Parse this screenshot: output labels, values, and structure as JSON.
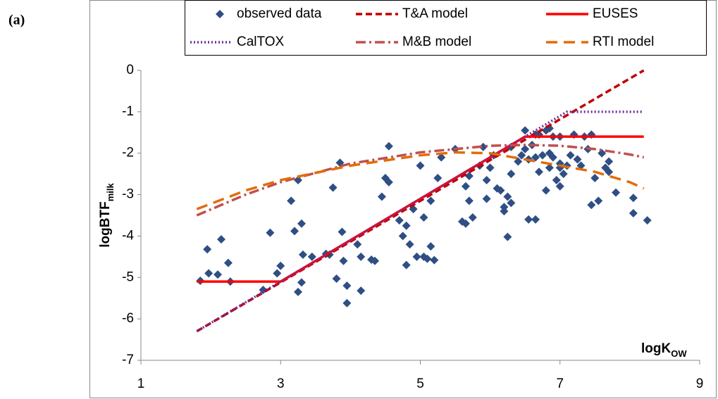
{
  "panel_label": "(a)",
  "chart_data": {
    "type": "scatter",
    "xlabel": {
      "text": "logK",
      "sub": "OW"
    },
    "ylabel": {
      "text": "logBTF",
      "sub": "milk"
    },
    "xlim": [
      1,
      9
    ],
    "ylim": [
      -7,
      0
    ],
    "xticks": [
      1,
      3,
      5,
      7,
      9
    ],
    "yticks": [
      -7,
      -6,
      -5,
      -4,
      -3,
      -2,
      -1,
      0
    ],
    "grid": false,
    "series": [
      {
        "name": "observed data",
        "color": "#2f4f84",
        "style": "markers",
        "x": [
          1.85,
          1.95,
          1.97,
          2.1,
          2.15,
          2.25,
          2.28,
          2.75,
          2.85,
          2.95,
          3.0,
          3.15,
          3.2,
          3.25,
          3.25,
          3.3,
          3.32,
          3.3,
          3.45,
          3.65,
          3.7,
          3.75,
          3.8,
          3.85,
          3.88,
          3.9,
          3.95,
          3.95,
          4.1,
          4.15,
          4.15,
          4.3,
          4.35,
          4.45,
          4.5,
          4.55,
          4.55,
          4.7,
          4.75,
          4.8,
          4.85,
          4.8,
          4.9,
          4.95,
          5.0,
          5.05,
          5.05,
          5.1,
          5.15,
          5.15,
          5.2,
          5.25,
          5.3,
          5.5,
          5.6,
          5.65,
          5.65,
          5.7,
          5.7,
          5.75,
          5.85,
          5.9,
          5.95,
          5.95,
          6.0,
          6.05,
          6.1,
          6.15,
          6.2,
          6.2,
          6.25,
          6.25,
          6.3,
          6.3,
          6.3,
          6.4,
          6.45,
          6.5,
          6.5,
          6.55,
          6.55,
          6.6,
          6.65,
          6.65,
          6.7,
          6.7,
          6.75,
          6.8,
          6.8,
          6.85,
          6.85,
          6.9,
          6.95,
          7.0,
          7.0,
          7.0,
          7.05,
          7.1,
          7.15,
          7.2,
          7.25,
          7.3,
          7.35,
          7.4,
          7.45,
          7.5,
          7.45,
          7.55,
          7.6,
          7.65,
          7.7,
          7.7,
          7.8,
          8.05,
          8.05,
          8.25,
          6.85,
          6.9,
          6.65,
          7.0
        ],
        "values": [
          -5.08,
          -4.32,
          -4.9,
          -4.93,
          -4.08,
          -4.65,
          -5.1,
          -5.3,
          -3.92,
          -4.9,
          -4.72,
          -3.15,
          -3.88,
          -2.65,
          -5.35,
          -3.7,
          -4.45,
          -5.12,
          -4.5,
          -4.43,
          -4.45,
          -2.83,
          -5.03,
          -2.23,
          -3.9,
          -4.6,
          -5.2,
          -5.62,
          -4.2,
          -4.5,
          -5.32,
          -4.57,
          -4.6,
          -3.05,
          -2.6,
          -2.7,
          -1.83,
          -3.62,
          -4.0,
          -3.75,
          -4.2,
          -4.7,
          -3.35,
          -4.5,
          -2.3,
          -4.5,
          -3.55,
          -4.55,
          -4.25,
          -3.15,
          -4.58,
          -2.6,
          -2.1,
          -1.9,
          -3.65,
          -3.7,
          -2.8,
          -2.55,
          -3.15,
          -3.55,
          -2.3,
          -1.85,
          -2.65,
          -3.1,
          -2.35,
          -2.05,
          -2.85,
          -2.9,
          -3.4,
          -3.3,
          -3.05,
          -4.02,
          -3.2,
          -2.5,
          -1.85,
          -2.2,
          -2.05,
          -1.9,
          -1.45,
          -2.15,
          -3.6,
          -1.8,
          -2.1,
          -3.6,
          -1.55,
          -2.45,
          -2.05,
          -1.45,
          -2.9,
          -2.0,
          -2.35,
          -2.1,
          -2.65,
          -2.35,
          -1.6,
          -2.8,
          -2.5,
          -2.3,
          -2.05,
          -1.55,
          -2.15,
          -2.3,
          -1.6,
          -1.9,
          -1.55,
          -2.6,
          -3.25,
          -3.15,
          -2.0,
          -2.35,
          -2.2,
          -2.45,
          -2.95,
          -3.08,
          -3.45,
          -3.62,
          -1.4,
          -1.6,
          -1.55,
          -2.25
        ]
      },
      {
        "name": "T&A model",
        "color": "#c00000",
        "style": "dashed",
        "x": [
          1.8,
          8.2
        ],
        "values": [
          -6.3,
          0
        ]
      },
      {
        "name": "EUSES",
        "color": "#ff0000",
        "style": "solid",
        "x": [
          1.8,
          3.0,
          6.5,
          8.2
        ],
        "values": [
          -5.1,
          -5.1,
          -1.6,
          -1.6
        ]
      },
      {
        "name": "CalTOX",
        "color": "#7030a0",
        "style": "dotted",
        "x": [
          1.8,
          7.1,
          8.2
        ],
        "values": [
          -6.3,
          -1,
          -1
        ]
      },
      {
        "name": "M&B model",
        "color": "#c0504d",
        "style": "dashdot",
        "x": [
          1.8,
          2.5,
          3,
          4,
          5,
          6,
          6.5,
          7,
          7.5,
          8,
          8.2
        ],
        "values": [
          -3.5,
          -3.0,
          -2.7,
          -2.25,
          -1.98,
          -1.82,
          -1.8,
          -1.82,
          -1.9,
          -2.03,
          -2.1
        ]
      },
      {
        "name": "RTI model",
        "color": "#e36c09",
        "style": "longdash",
        "x": [
          1.8,
          2.5,
          3,
          4,
          5,
          5.5,
          6,
          6.5,
          7,
          7.5,
          8,
          8.2
        ],
        "values": [
          -3.35,
          -2.9,
          -2.65,
          -2.3,
          -2.05,
          -1.98,
          -2.0,
          -2.15,
          -2.3,
          -2.45,
          -2.7,
          -2.85
        ]
      }
    ]
  }
}
